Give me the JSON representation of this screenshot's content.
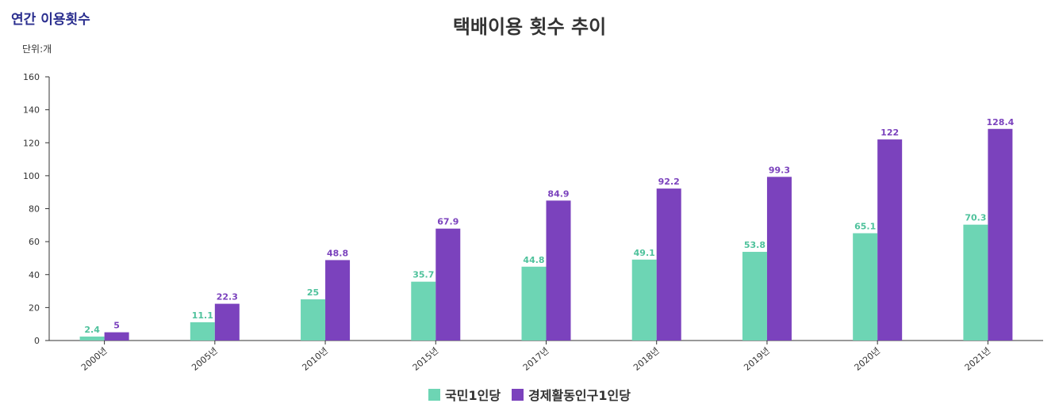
{
  "header": {
    "page_title": "연간 이용횟수",
    "unit": "단위:개"
  },
  "chart_data": {
    "type": "bar",
    "title": "택배이용 횟수 추이",
    "xlabel": "",
    "ylabel": "",
    "ylim": [
      0,
      160
    ],
    "yticks": [
      0,
      20,
      40,
      60,
      80,
      100,
      120,
      140,
      160
    ],
    "categories": [
      "2000년",
      "2005년",
      "2010년",
      "2015년",
      "2017년",
      "2018년",
      "2019년",
      "2020년",
      "2021년"
    ],
    "series": [
      {
        "name": "국민1인당",
        "color": "#6dd5b4",
        "values": [
          2.4,
          11.1,
          25,
          35.7,
          44.8,
          49.1,
          53.8,
          65.1,
          70.3
        ]
      },
      {
        "name": "경제활동인구1인당",
        "color": "#7b42bd",
        "values": [
          5,
          22.3,
          48.8,
          67.9,
          84.9,
          92.2,
          99.3,
          122,
          128.4
        ]
      }
    ],
    "grid": false,
    "legend_position": "bottom"
  }
}
